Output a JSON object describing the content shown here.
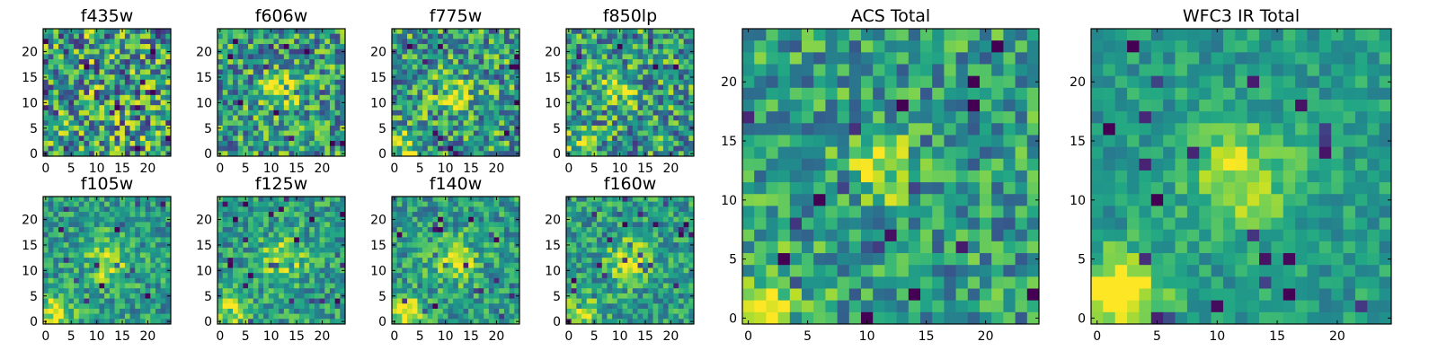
{
  "chart_data": [
    {
      "type": "heatmap",
      "title": "f435w",
      "grid_size": 25,
      "xticks": [
        0,
        5,
        10,
        15,
        20
      ],
      "yticks": [
        0,
        5,
        10,
        15,
        20
      ],
      "colormap": "viridis",
      "description_hint": "noise, no clear source",
      "source": null,
      "corner": null,
      "noise": 0.55
    },
    {
      "type": "heatmap",
      "title": "f606w",
      "grid_size": 25,
      "xticks": [
        0,
        5,
        10,
        15,
        20
      ],
      "yticks": [
        0,
        5,
        10,
        15,
        20
      ],
      "colormap": "viridis",
      "source": {
        "x": 12,
        "y": 12,
        "amp": 0.35,
        "sigma": 2.2
      },
      "corner": null,
      "noise": 0.45
    },
    {
      "type": "heatmap",
      "title": "f775w",
      "grid_size": 25,
      "xticks": [
        0,
        5,
        10,
        15,
        20
      ],
      "yticks": [
        0,
        5,
        10,
        15,
        20
      ],
      "colormap": "viridis",
      "source": {
        "x": 11,
        "y": 12,
        "amp": 0.3,
        "sigma": 2.5
      },
      "corner": {
        "amp": 0.25
      },
      "noise": 0.45
    },
    {
      "type": "heatmap",
      "title": "f850lp",
      "grid_size": 25,
      "xticks": [
        0,
        5,
        10,
        15,
        20
      ],
      "yticks": [
        0,
        5,
        10,
        15,
        20
      ],
      "colormap": "viridis",
      "source": {
        "x": 9,
        "y": 13,
        "amp": 0.3,
        "sigma": 2.5
      },
      "corner": {
        "amp": 0.25
      },
      "noise": 0.45
    },
    {
      "type": "heatmap",
      "title": "f105w",
      "grid_size": 25,
      "xticks": [
        0,
        5,
        10,
        15,
        20
      ],
      "yticks": [
        0,
        5,
        10,
        15,
        20
      ],
      "colormap": "viridis",
      "source": {
        "x": 12,
        "y": 12,
        "amp": 0.35,
        "sigma": 3
      },
      "corner": {
        "amp": 0.45
      },
      "noise": 0.3
    },
    {
      "type": "heatmap",
      "title": "f125w",
      "grid_size": 25,
      "xticks": [
        0,
        5,
        10,
        15,
        20
      ],
      "yticks": [
        0,
        5,
        10,
        15,
        20
      ],
      "colormap": "viridis",
      "source": {
        "x": 12,
        "y": 12,
        "amp": 0.35,
        "sigma": 3
      },
      "corner": {
        "amp": 0.45
      },
      "noise": 0.3
    },
    {
      "type": "heatmap",
      "title": "f140w",
      "grid_size": 25,
      "xticks": [
        0,
        5,
        10,
        15,
        20
      ],
      "yticks": [
        0,
        5,
        10,
        15,
        20
      ],
      "colormap": "viridis",
      "source": {
        "x": 12,
        "y": 12,
        "amp": 0.35,
        "sigma": 3
      },
      "corner": {
        "amp": 0.5
      },
      "noise": 0.3
    },
    {
      "type": "heatmap",
      "title": "f160w",
      "grid_size": 25,
      "xticks": [
        0,
        5,
        10,
        15,
        20
      ],
      "yticks": [
        0,
        5,
        10,
        15,
        20
      ],
      "colormap": "viridis",
      "source": {
        "x": 12,
        "y": 12,
        "amp": 0.35,
        "sigma": 3
      },
      "corner": {
        "amp": 0.5
      },
      "noise": 0.3
    },
    {
      "type": "heatmap",
      "title": "ACS Total",
      "grid_size": 25,
      "xticks": [
        0,
        5,
        10,
        15,
        20
      ],
      "yticks": [
        0,
        5,
        10,
        15,
        20
      ],
      "colormap": "viridis",
      "source": {
        "x": 11.5,
        "y": 12.5,
        "amp": 0.35,
        "sigma": 2
      },
      "corner": {
        "amp": 0.35
      },
      "noise": 0.35
    },
    {
      "type": "heatmap",
      "title": "WFC3 IR Total",
      "grid_size": 25,
      "xticks": [
        0,
        5,
        10,
        15,
        20
      ],
      "yticks": [
        0,
        5,
        10,
        15,
        20
      ],
      "colormap": "viridis",
      "source": {
        "x": 12,
        "y": 12,
        "amp": 0.35,
        "sigma": 3
      },
      "corner": {
        "amp": 0.65
      },
      "noise": 0.2
    }
  ]
}
